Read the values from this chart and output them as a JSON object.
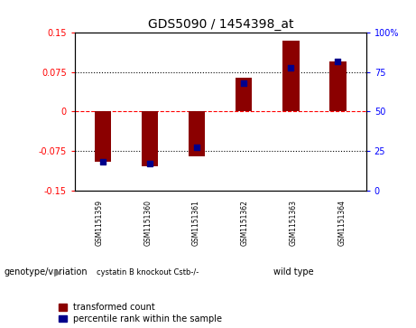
{
  "title": "GDS5090 / 1454398_at",
  "samples": [
    "GSM1151359",
    "GSM1151360",
    "GSM1151361",
    "GSM1151362",
    "GSM1151363",
    "GSM1151364"
  ],
  "transformed_count": [
    -0.095,
    -0.105,
    -0.085,
    0.065,
    0.135,
    0.095
  ],
  "percentile_rank": [
    18,
    17,
    27,
    68,
    78,
    82
  ],
  "ylim_left": [
    -0.15,
    0.15
  ],
  "ylim_right": [
    0,
    100
  ],
  "yticks_left": [
    -0.15,
    -0.075,
    0,
    0.075,
    0.15
  ],
  "yticks_right": [
    0,
    25,
    50,
    75,
    100
  ],
  "ytick_labels_left": [
    "-0.15",
    "-0.075",
    "0",
    "0.075",
    "0.15"
  ],
  "ytick_labels_right": [
    "0",
    "25",
    "50",
    "75",
    "100%"
  ],
  "bar_color": "#8B0000",
  "dot_color": "#00008B",
  "bar_width": 0.35,
  "dot_size": 25,
  "legend_items": [
    "transformed count",
    "percentile rank within the sample"
  ],
  "genotype_label": "genotype/variation",
  "group1_label": "cystatin B knockout Cstb-/-",
  "group2_label": "wild type",
  "background_color": "#ffffff",
  "plot_bg_color": "#ffffff",
  "tick_label_bg": "#c8c8c8",
  "green_color": "#5cd65c"
}
